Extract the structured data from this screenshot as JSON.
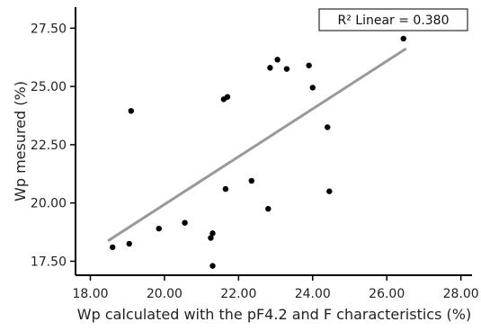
{
  "chart_data": {
    "type": "scatter",
    "xlabel": "Wp calculated with the pF4.2 and F characteristics (%)",
    "ylabel": "Wp mesured (%)",
    "xlim": [
      17.6,
      28.3
    ],
    "ylim": [
      16.9,
      28.4
    ],
    "x_ticks": [
      "18.00",
      "20.00",
      "22.00",
      "24.00",
      "26.00",
      "28.00"
    ],
    "y_ticks": [
      "17.50",
      "20.00",
      "22.50",
      "25.00",
      "27.50"
    ],
    "fit_label": "R² Linear = 0.380",
    "grid": false,
    "colors": {
      "points": "#000000",
      "fit_line": "#999999",
      "axis": "#000000"
    },
    "points": [
      {
        "x": 18.6,
        "y": 18.1
      },
      {
        "x": 19.05,
        "y": 18.25
      },
      {
        "x": 19.1,
        "y": 23.95
      },
      {
        "x": 19.85,
        "y": 18.9
      },
      {
        "x": 20.55,
        "y": 19.15
      },
      {
        "x": 21.25,
        "y": 18.5
      },
      {
        "x": 21.3,
        "y": 18.7
      },
      {
        "x": 21.3,
        "y": 17.3
      },
      {
        "x": 21.6,
        "y": 24.45
      },
      {
        "x": 21.65,
        "y": 20.6
      },
      {
        "x": 21.7,
        "y": 24.55
      },
      {
        "x": 22.35,
        "y": 20.95
      },
      {
        "x": 22.8,
        "y": 19.75
      },
      {
        "x": 22.85,
        "y": 25.8
      },
      {
        "x": 23.05,
        "y": 26.15
      },
      {
        "x": 23.3,
        "y": 25.75
      },
      {
        "x": 23.9,
        "y": 25.9
      },
      {
        "x": 24.0,
        "y": 24.95
      },
      {
        "x": 24.4,
        "y": 23.25
      },
      {
        "x": 24.45,
        "y": 20.5
      },
      {
        "x": 26.45,
        "y": 27.05
      }
    ],
    "fit_line": {
      "x": [
        18.5,
        26.5
      ],
      "y": [
        18.4,
        26.6
      ]
    }
  }
}
